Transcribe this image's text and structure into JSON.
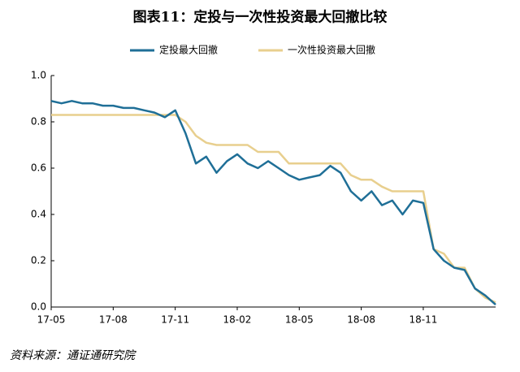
{
  "chart_data": {
    "type": "line",
    "title": "图表11：定投与一次性投资最大回撤比较",
    "source": "资料来源：通证通研究院",
    "categories": [
      "17-05",
      null,
      null,
      null,
      null,
      null,
      "17-08",
      null,
      null,
      null,
      null,
      null,
      "17-11",
      null,
      null,
      null,
      null,
      null,
      "18-02",
      null,
      null,
      null,
      null,
      null,
      "18-05",
      null,
      null,
      null,
      null,
      null,
      "18-08",
      null,
      null,
      null,
      null,
      null,
      "18-11",
      null,
      null,
      null,
      null,
      null,
      null,
      null
    ],
    "series": [
      {
        "name": "定投最大回撤",
        "color": "#1f6f97",
        "values": [
          0.89,
          0.88,
          0.89,
          0.88,
          0.88,
          0.87,
          0.87,
          0.86,
          0.86,
          0.85,
          0.84,
          0.82,
          0.85,
          0.75,
          0.62,
          0.65,
          0.58,
          0.63,
          0.66,
          0.62,
          0.6,
          0.63,
          0.6,
          0.57,
          0.55,
          0.56,
          0.57,
          0.61,
          0.58,
          0.5,
          0.46,
          0.5,
          0.44,
          0.46,
          0.4,
          0.46,
          0.45,
          0.25,
          0.2,
          0.17,
          0.16,
          0.08,
          0.05,
          0.01
        ]
      },
      {
        "name": "一次性投资最大回撤",
        "color": "#e8cf8e",
        "values": [
          0.83,
          0.83,
          0.83,
          0.83,
          0.83,
          0.83,
          0.83,
          0.83,
          0.83,
          0.83,
          0.83,
          0.83,
          0.83,
          0.8,
          0.74,
          0.71,
          0.7,
          0.7,
          0.7,
          0.7,
          0.67,
          0.67,
          0.67,
          0.62,
          0.62,
          0.62,
          0.62,
          0.62,
          0.62,
          0.57,
          0.55,
          0.55,
          0.52,
          0.5,
          0.5,
          0.5,
          0.5,
          0.25,
          0.23,
          0.17,
          0.17,
          0.08,
          0.04,
          0.02
        ]
      }
    ],
    "ylim": [
      0,
      1
    ],
    "yticks": [
      {
        "value": 0,
        "label": "0.0"
      },
      0.2,
      0.4,
      0.6,
      0.8,
      {
        "value": 1,
        "label": "1.0"
      }
    ],
    "grid": false
  }
}
